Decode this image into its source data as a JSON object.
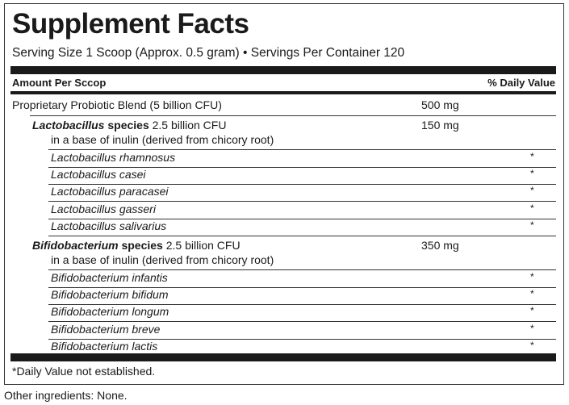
{
  "title": "Supplement Facts",
  "serving": "Serving Size 1 Scoop (Approx. 0.5 gram) • Servings Per Container 120",
  "header": {
    "amount": "Amount Per Sccop",
    "dv": "% Daily Value"
  },
  "blend": {
    "name": "Proprietary Probiotic Blend (5 billion CFU)",
    "amount": "500 mg"
  },
  "groups": [
    {
      "genus": "Lactobacillus",
      "species_word": "species",
      "cfu": "2.5 billion CFU",
      "base": "in a base of inulin (derived from chicory root)",
      "amount": "150 mg",
      "strains": [
        "Lactobacillus rhamnosus",
        "Lactobacillus casei",
        "Lactobacillus paracasei",
        "Lactobacillus gasseri",
        "Lactobacillus salivarius"
      ]
    },
    {
      "genus": "Bifidobacterium",
      "species_word": "species",
      "cfu": "2.5 billion CFU",
      "base": "in a base of inulin (derived from chicory root)",
      "amount": "350 mg",
      "strains": [
        "Bifidobacterium infantis",
        "Bifidobacterium bifidum",
        "Bifidobacterium longum",
        "Bifidobacterium breve",
        "Bifidobacterium lactis"
      ]
    }
  ],
  "dv_mark": "*",
  "footnote": "*Daily Value not established.",
  "other": "Other ingredients: None."
}
